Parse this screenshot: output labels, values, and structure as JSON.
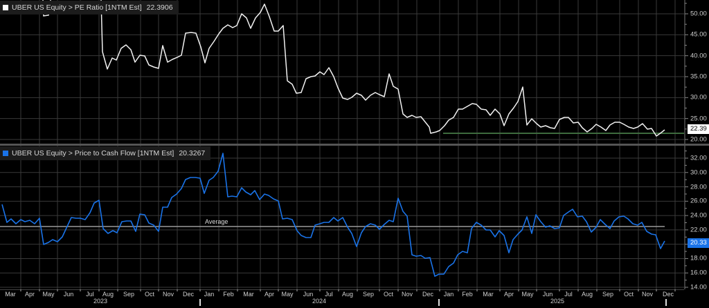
{
  "top_panel": {
    "legend": {
      "security": "UBER US Equity",
      "separator": ">",
      "field": "PE Ratio [1NTM Est]",
      "last_value": "22.3906",
      "color": "#ffffff"
    },
    "price_tag": "22.39",
    "yaxis_ticks": [
      "50.00",
      "45.00",
      "40.00",
      "35.00",
      "30.00",
      "25.00",
      "20.00"
    ]
  },
  "bottom_panel": {
    "legend": {
      "security": "UBER US Equity",
      "separator": ">",
      "field": "Price to Cash Flow [1NTM Est]",
      "last_value": "20.3267",
      "color": "#1a73e8"
    },
    "price_tag": "20.33",
    "average_label": "Average",
    "yaxis_ticks": [
      "32.00",
      "30.00",
      "28.00",
      "26.00",
      "24.00",
      "22.00",
      "20.00",
      "18.00",
      "16.00",
      "14.00"
    ]
  },
  "xaxis": {
    "months": [
      "Mar",
      "Apr",
      "May",
      "Jun",
      "Jul",
      "Aug",
      "Sep",
      "Oct",
      "Nov",
      "Dec",
      "Jan",
      "Feb",
      "Mar",
      "Apr",
      "May",
      "Jun",
      "Jul",
      "Aug",
      "Sep",
      "Oct",
      "Nov",
      "Dec",
      "Jan",
      "Feb",
      "Mar",
      "Apr",
      "May",
      "Jun",
      "Jul",
      "Aug",
      "Sep",
      "Oct",
      "Nov",
      "Dec"
    ],
    "years": [
      "2023",
      "2024",
      "2025"
    ]
  },
  "chart_data": [
    {
      "type": "line",
      "title": "UBER US Equity > PE Ratio [1NTM Est]",
      "series": [
        {
          "name": "PE Ratio [1NTM Est]",
          "color": "#ffffff",
          "last": 22.3906
        }
      ],
      "x": [
        "Mar 2023",
        "Apr 2023",
        "May 2023",
        "Jun 2023",
        "Jul 2023",
        "Aug 2023",
        "Sep 2023",
        "Oct 2023",
        "Nov 2023",
        "Dec 2023",
        "Jan 2024",
        "Feb 2024",
        "Mar 2024",
        "Apr 2024",
        "May 2024",
        "Jun 2024",
        "Jul 2024",
        "Aug 2024",
        "Sep 2024",
        "Oct 2024",
        "Nov 2024",
        "Dec 2024",
        "Jan 2025",
        "Feb 2025",
        "Mar 2025",
        "Apr 2025",
        "May 2025",
        "Jun 2025",
        "Jul 2025",
        "Aug 2025",
        "Sep 2025",
        "Oct 2025",
        "Nov 2025"
      ],
      "values": [
        null,
        null,
        49.5,
        null,
        null,
        38.5,
        41.5,
        38.0,
        40.0,
        45.3,
        42.5,
        48.0,
        49.5,
        46.0,
        33.5,
        34.5,
        36.0,
        30.0,
        31.0,
        33.0,
        25.5,
        22.0,
        27.0,
        27.5,
        26.0,
        29.0,
        24.0,
        24.5,
        24.0,
        23.0,
        23.5,
        23.0,
        22.39
      ],
      "ylim": [
        19.5,
        53
      ],
      "yticks": [
        20,
        25,
        30,
        35,
        40,
        45,
        50
      ],
      "grid": true
    },
    {
      "type": "line",
      "title": "UBER US Equity > Price to Cash Flow [1NTM Est]",
      "series": [
        {
          "name": "Price to Cash Flow [1NTM Est]",
          "color": "#1a73e8",
          "last": 20.3267
        }
      ],
      "x": [
        "Mar 2023",
        "Apr 2023",
        "May 2023",
        "Jun 2023",
        "Jul 2023",
        "Aug 2023",
        "Sep 2023",
        "Oct 2023",
        "Nov 2023",
        "Dec 2023",
        "Jan 2024",
        "Feb 2024",
        "Mar 2024",
        "Apr 2024",
        "May 2024",
        "Jun 2024",
        "Jul 2024",
        "Aug 2024",
        "Sep 2024",
        "Oct 2024",
        "Nov 2024",
        "Dec 2024",
        "Jan 2025",
        "Feb 2025",
        "Mar 2025",
        "Apr 2025",
        "May 2025",
        "Jun 2025",
        "Jul 2025",
        "Aug 2025",
        "Sep 2025",
        "Oct 2025",
        "Nov 2025"
      ],
      "values": [
        22.5,
        22.3,
        19.5,
        22.8,
        24.5,
        20.8,
        22.5,
        22.0,
        25.5,
        29.0,
        31.0,
        27.0,
        27.0,
        24.0,
        21.5,
        23.0,
        23.5,
        20.5,
        22.5,
        24.5,
        18.5,
        16.0,
        19.0,
        21.5,
        19.5,
        21.0,
        23.0,
        22.0,
        24.5,
        21.5,
        23.3,
        22.0,
        20.33
      ],
      "average": 22.7,
      "ylim": [
        13.5,
        33
      ],
      "yticks": [
        14,
        16,
        18,
        20,
        22,
        24,
        26,
        28,
        30,
        32
      ],
      "grid": true
    }
  ]
}
